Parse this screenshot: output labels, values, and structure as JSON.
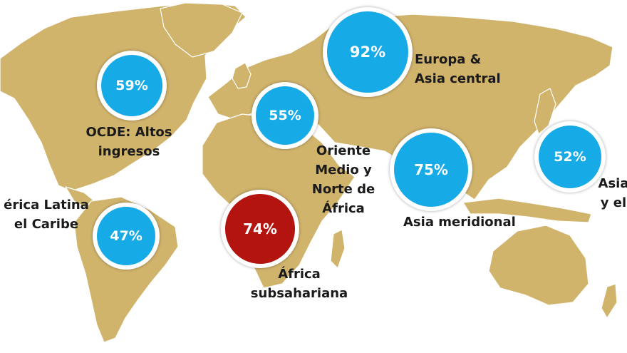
{
  "colors": {
    "land": "#d1b46c",
    "bubble_default": "#16abe6",
    "bubble_highlight": "#b3140f",
    "label": "#1a1a1a"
  },
  "regions": {
    "oecd": {
      "name_l1": "OCDE: Altos",
      "name_l2": "ingresos",
      "value": "59%",
      "color": "#16abe6"
    },
    "europe_central_asia": {
      "name_l1": "Europa &",
      "name_l2": "Asia central",
      "value": "92%",
      "color": "#16abe6"
    },
    "mena": {
      "name_l1": "Oriente",
      "name_l2": "Medio y",
      "name_l3": "Norte de",
      "name_l4": "África",
      "value": "55%",
      "color": "#16abe6"
    },
    "latin_america": {
      "name_l1": "érica Latina",
      "name_l2": "el Caribe",
      "value": "47%",
      "color": "#16abe6"
    },
    "sub_saharan_africa": {
      "name_l1": "África",
      "name_l2": "subsahariana",
      "value": "74%",
      "color": "#b3140f"
    },
    "south_asia": {
      "name_l1": "Asia meridional",
      "value": "75%",
      "color": "#16abe6"
    },
    "east_asia": {
      "name_l1": "Asia",
      "name_l2": "y el",
      "value": "52%",
      "color": "#16abe6"
    }
  }
}
